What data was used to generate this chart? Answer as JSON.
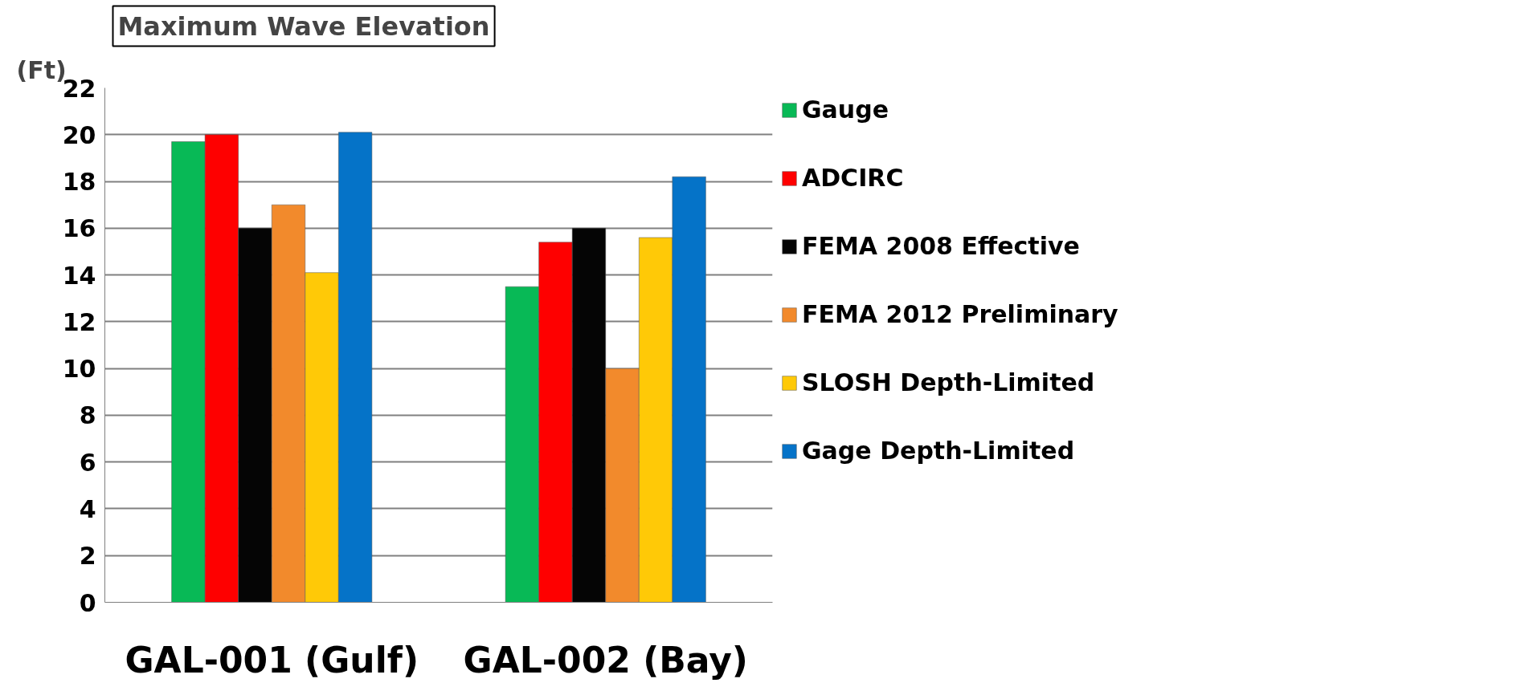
{
  "chart_data": {
    "type": "bar",
    "title": "Maximum Wave Elevation",
    "ylabel": "(Ft)",
    "categories": [
      "GAL-001 (Gulf)",
      "GAL-002 (Bay)"
    ],
    "series": [
      {
        "name": "Gauge",
        "color": "#08b956",
        "values": [
          19.7,
          13.5
        ]
      },
      {
        "name": "ADCIRC",
        "color": "#fe0000",
        "values": [
          20.0,
          15.4
        ]
      },
      {
        "name": "FEMA 2008 Effective",
        "color": "#050505",
        "values": [
          16.0,
          16.0
        ]
      },
      {
        "name": "FEMA 2012 Preliminary",
        "color": "#f28a2c",
        "values": [
          17.0,
          10.0
        ]
      },
      {
        "name": "SLOSH Depth-Limited",
        "color": "#ffc907",
        "values": [
          14.1,
          15.6
        ]
      },
      {
        "name": "Gage Depth-Limited",
        "color": "#0573c8",
        "values": [
          20.1,
          18.2
        ]
      }
    ],
    "ylim": [
      0,
      22
    ],
    "yticks": [
      0,
      2,
      4,
      6,
      8,
      10,
      12,
      14,
      16,
      18,
      20,
      22
    ],
    "grid": "y",
    "legend": "right"
  }
}
